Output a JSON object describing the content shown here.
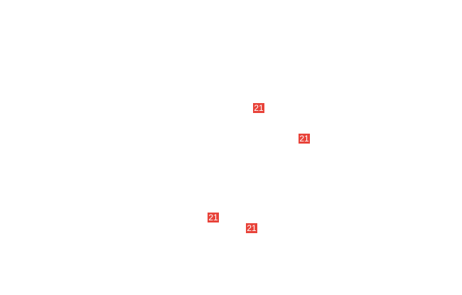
{
  "callout_color": "#e8433a",
  "callouts": [
    {
      "label": "21"
    },
    {
      "label": "21"
    },
    {
      "label": "21"
    },
    {
      "label": "21"
    }
  ]
}
